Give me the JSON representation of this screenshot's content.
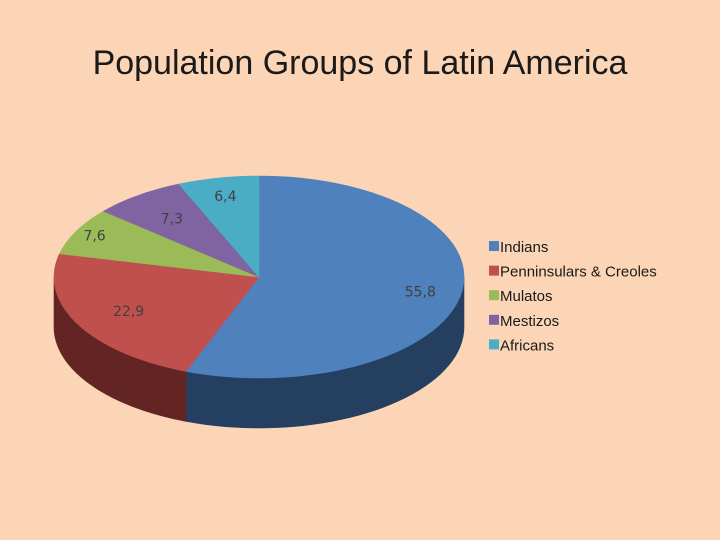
{
  "chart_data": {
    "type": "pie",
    "title": "Population Groups of Latin America",
    "legend_position": "right",
    "slices": [
      {
        "name": "Indians",
        "value": 55.8,
        "label": "55,8",
        "color": "#4f81bd",
        "side_color": "#243f60"
      },
      {
        "name": "Penninsulars & Creoles",
        "value": 22.9,
        "label": "22,9",
        "color": "#c0504d",
        "side_color": "#632523"
      },
      {
        "name": "Mulatos",
        "value": 7.6,
        "label": "7,6",
        "color": "#9bbb59",
        "side_color": "#4f6228"
      },
      {
        "name": "Mestizos",
        "value": 7.3,
        "label": "7,3",
        "color": "#8064a2",
        "side_color": "#3f3151"
      },
      {
        "name": "Africans",
        "value": 6.4,
        "label": "6,4",
        "color": "#4bacc6",
        "side_color": "#205867"
      }
    ]
  }
}
